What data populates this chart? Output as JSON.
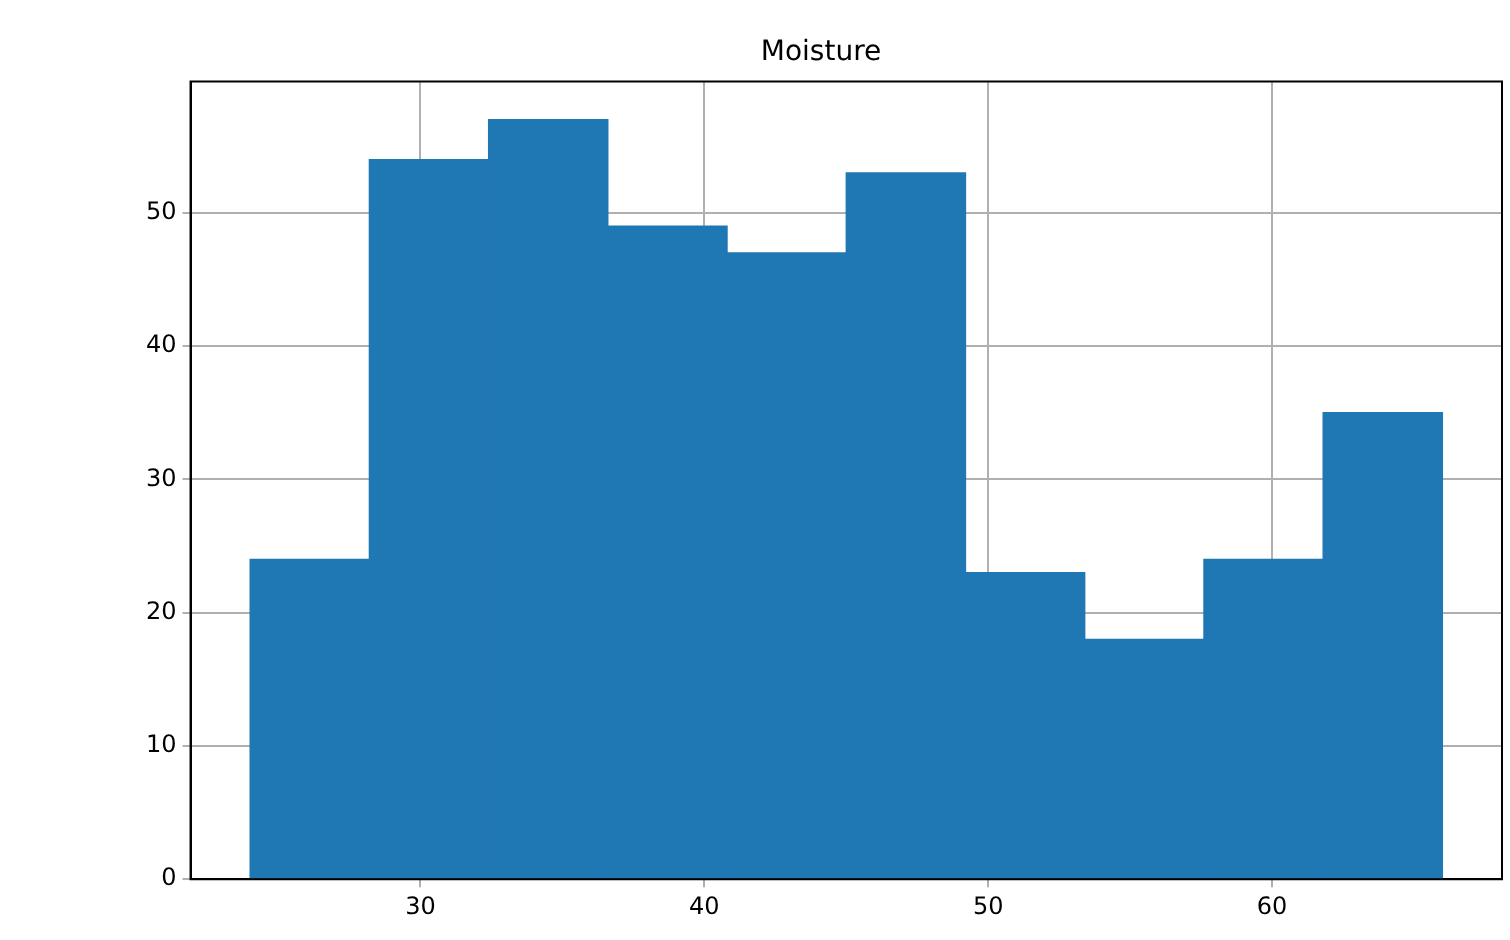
{
  "chart_data": {
    "type": "histogram",
    "title": "Moisture",
    "bins": [
      24,
      28.2,
      32.4,
      36.6,
      40.8,
      45,
      49.2,
      53.4,
      57.6,
      61.8,
      66
    ],
    "values": [
      24,
      54,
      57,
      49,
      47,
      53,
      23,
      18,
      24,
      35
    ],
    "color": "#1f77b4",
    "xlim": [
      21.9,
      68.1
    ],
    "xticks": [
      30,
      40,
      50,
      60
    ],
    "ylim": [
      0,
      59.85
    ],
    "yticks": [
      0,
      10,
      20,
      30,
      40,
      50
    ],
    "grid": true,
    "legend": false
  }
}
